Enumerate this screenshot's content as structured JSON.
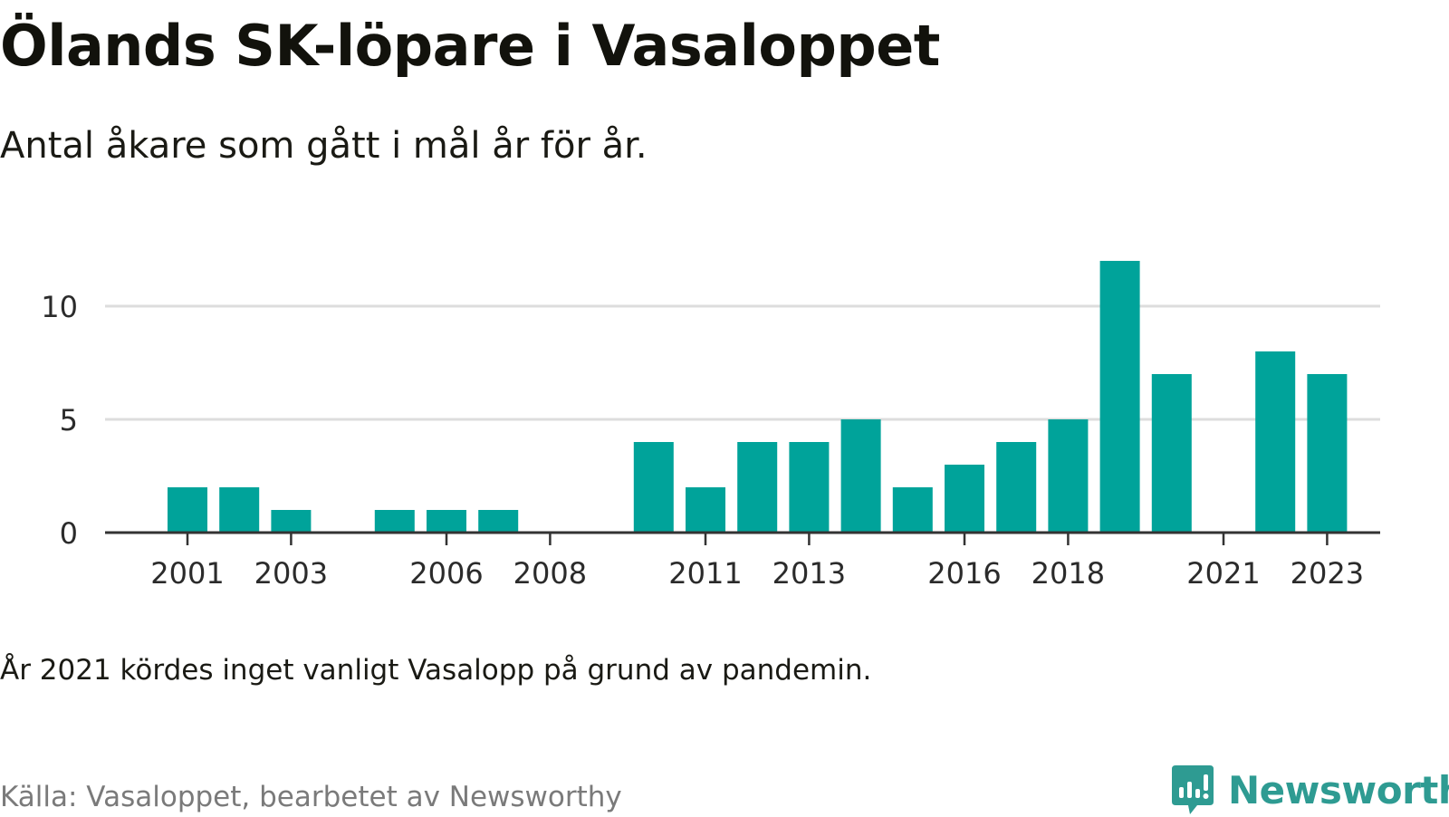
{
  "header": {
    "title": "Ölands SK-löpare i Vasaloppet",
    "subtitle": "Antal åkare som gått i mål år för år."
  },
  "footer": {
    "note": "År 2021 kördes inget vanligt Vasalopp på grund av pandemin.",
    "source": "Källa: Vasaloppet, bearbetet av Newsworthy",
    "brand": "Newsworthy",
    "brand_icon": "newsworthy-logo-icon"
  },
  "colors": {
    "bar": "#00a39a",
    "gridline": "#dddddd",
    "axis": "#333333",
    "brand": "#2e9b92"
  },
  "chart_data": {
    "type": "bar",
    "categories": [
      "2001",
      "2002",
      "2003",
      "2004",
      "2005",
      "2006",
      "2007",
      "2008",
      "2009",
      "2010",
      "2011",
      "2012",
      "2013",
      "2014",
      "2015",
      "2016",
      "2017",
      "2018",
      "2019",
      "2020",
      "2021",
      "2022",
      "2023"
    ],
    "values": [
      2,
      2,
      1,
      0,
      1,
      1,
      1,
      0,
      0,
      4,
      2,
      4,
      4,
      5,
      2,
      3,
      4,
      5,
      12,
      7,
      0,
      8,
      7
    ],
    "x_tick_labels": [
      "2001",
      "2003",
      "2006",
      "2008",
      "2011",
      "2013",
      "2016",
      "2018",
      "2021",
      "2023"
    ],
    "y_ticks": [
      0,
      5,
      10
    ],
    "ylim": [
      0,
      12
    ],
    "grid": true,
    "xlabel": "",
    "ylabel": ""
  }
}
